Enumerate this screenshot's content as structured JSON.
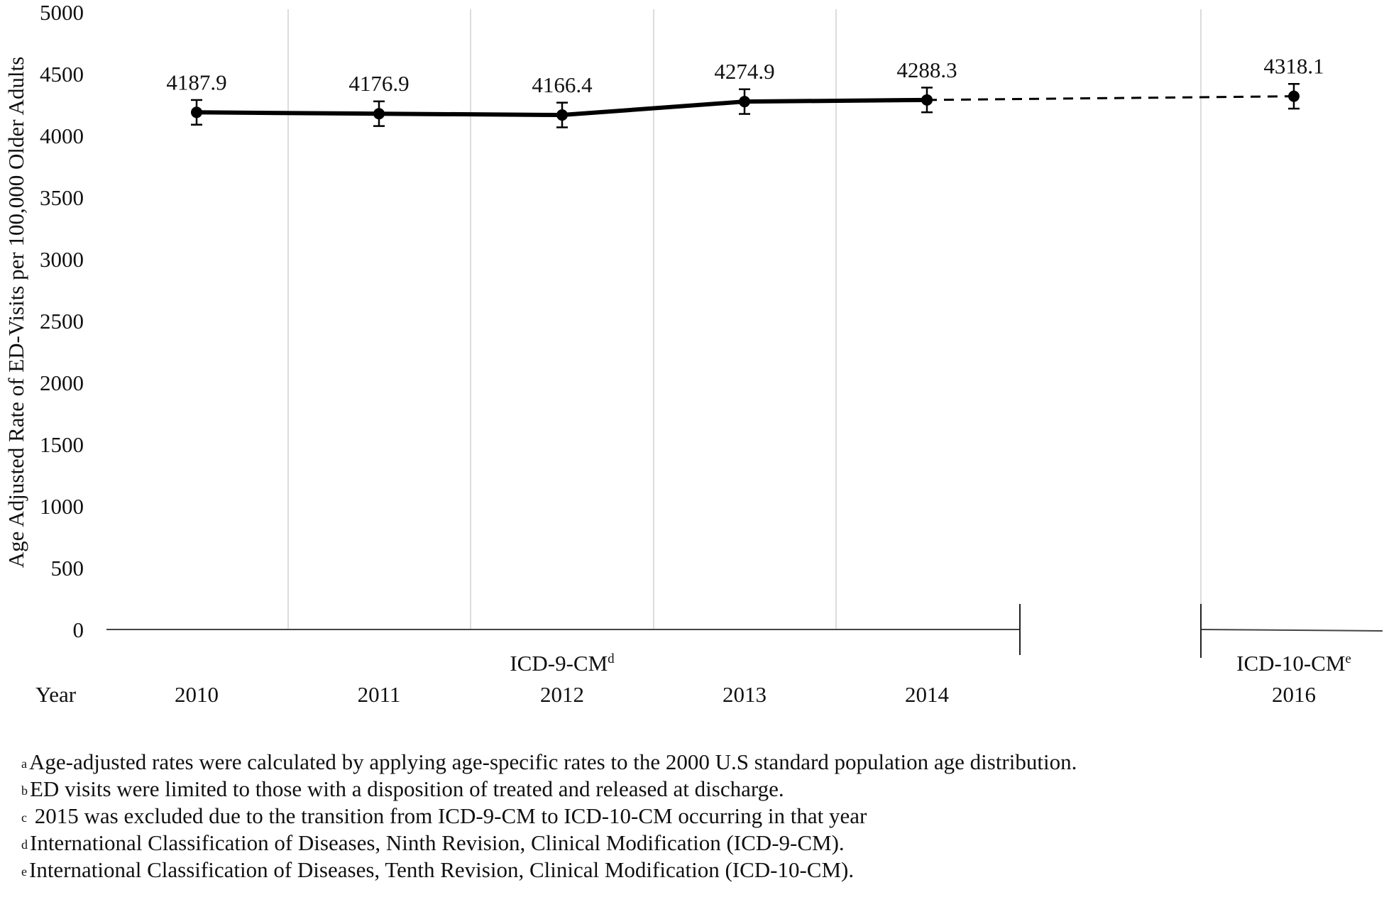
{
  "chart_data": {
    "type": "line",
    "title": "",
    "ylabel": "Age Adjusted Rate of ED-Visits per 100,000 Older Adults",
    "xlabel": "Year",
    "ylim": [
      0,
      5000
    ],
    "yticks": [
      "0",
      "500",
      "1000",
      "1500",
      "2000",
      "2500",
      "3000",
      "3500",
      "4000",
      "4500",
      "5000"
    ],
    "grid": "vertical",
    "categories": [
      "2010",
      "2011",
      "2012",
      "2013",
      "2014",
      "2016"
    ],
    "series": [
      {
        "values": [
          4187.9,
          4176.9,
          4166.4,
          4274.9,
          4288.3,
          4318.1
        ],
        "error_low": [
          4087.9,
          4076.9,
          4066.4,
          4174.9,
          4188.3,
          4218.1
        ],
        "error_high": [
          4287.9,
          4276.9,
          4266.4,
          4374.9,
          4388.3,
          4418.1
        ],
        "labels": [
          "4187.9",
          "4176.9",
          "4166.4",
          "4274.9",
          "4288.3",
          "4318.1"
        ],
        "line_style": "solid 2010–2014, dashed 2014–2016"
      }
    ],
    "groups": [
      {
        "label": "ICD-9-CM",
        "sup": "d",
        "years": [
          "2010",
          "2011",
          "2012",
          "2013",
          "2014"
        ]
      },
      {
        "label": "ICD-10-CM",
        "sup": "e",
        "years": [
          "2016"
        ]
      }
    ]
  },
  "footnotes": [
    {
      "mark": "a",
      "text": "Age-adjusted rates were calculated by applying age-specific rates to the 2000 U.S standard population age distribution."
    },
    {
      "mark": "b",
      "text": "ED visits were limited to those with a disposition of treated and released at discharge."
    },
    {
      "mark": "c",
      "text": " 2015 was excluded due to the transition from ICD-9-CM to ICD-10-CM occurring in that year"
    },
    {
      "mark": "d",
      "text": "International Classification of Diseases, Ninth Revision, Clinical Modification (ICD-9-CM)."
    },
    {
      "mark": "e",
      "text": "International Classification of Diseases, Tenth Revision, Clinical Modification (ICD-10-CM)."
    }
  ]
}
